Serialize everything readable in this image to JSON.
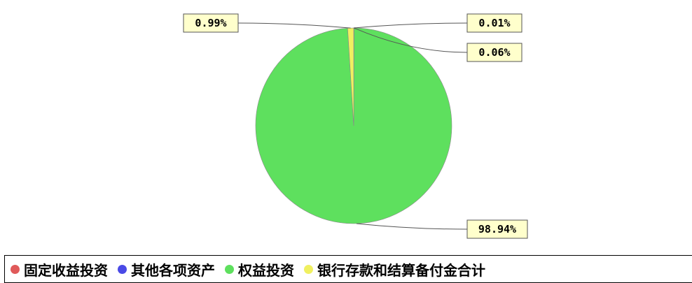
{
  "chart_data": {
    "type": "pie",
    "title": "",
    "slices": [
      {
        "name": "固定收益投资",
        "value": 0.01,
        "label": "0.01%",
        "color": "#e05a5a"
      },
      {
        "name": "其他各项资产",
        "value": 0.06,
        "label": "0.06%",
        "color": "#4a4ae6"
      },
      {
        "name": "权益投资",
        "value": 98.94,
        "label": "98.94%",
        "color": "#5ee05e"
      },
      {
        "name": "银行存款和结算备付金合计",
        "value": 0.99,
        "label": "0.99%",
        "color": "#f0f060"
      }
    ],
    "legend_position": "bottom",
    "label_box_color": "#ffffcc"
  }
}
